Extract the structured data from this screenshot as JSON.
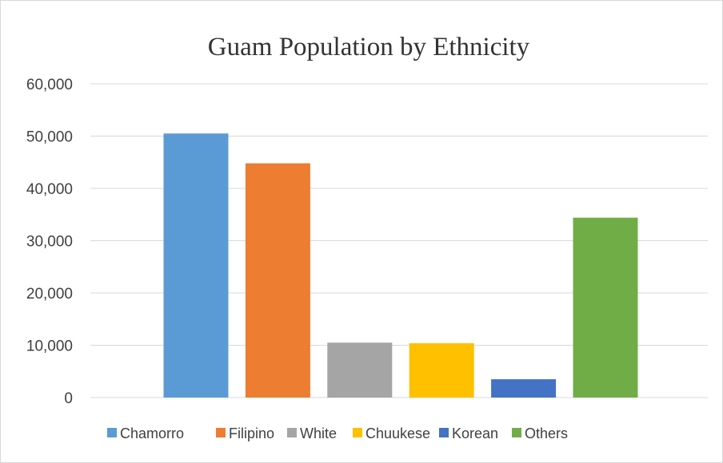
{
  "chart_data": {
    "type": "bar",
    "title": "Guam Population by Ethnicity",
    "categories": [
      "Chamorro",
      "Filipino",
      "White",
      "Chuukese",
      "Korean",
      "Others"
    ],
    "values": [
      50500,
      44800,
      10500,
      10400,
      3500,
      34400
    ],
    "colors": [
      "#5b9bd5",
      "#ed7d31",
      "#a5a5a5",
      "#ffc000",
      "#4472c4",
      "#70ad47"
    ],
    "ylim": [
      0,
      60000
    ],
    "yticks": [
      0,
      10000,
      20000,
      30000,
      40000,
      50000,
      60000
    ],
    "ytick_labels": [
      "0",
      "10,000",
      "20,000",
      "30,000",
      "40,000",
      "50,000",
      "60,000"
    ],
    "xlabel": "",
    "ylabel": "",
    "grid": true,
    "legend_position": "bottom",
    "legend": [
      "Chamorro",
      "Filipino",
      "White",
      "Chuukese",
      "Korean",
      "Others"
    ]
  }
}
